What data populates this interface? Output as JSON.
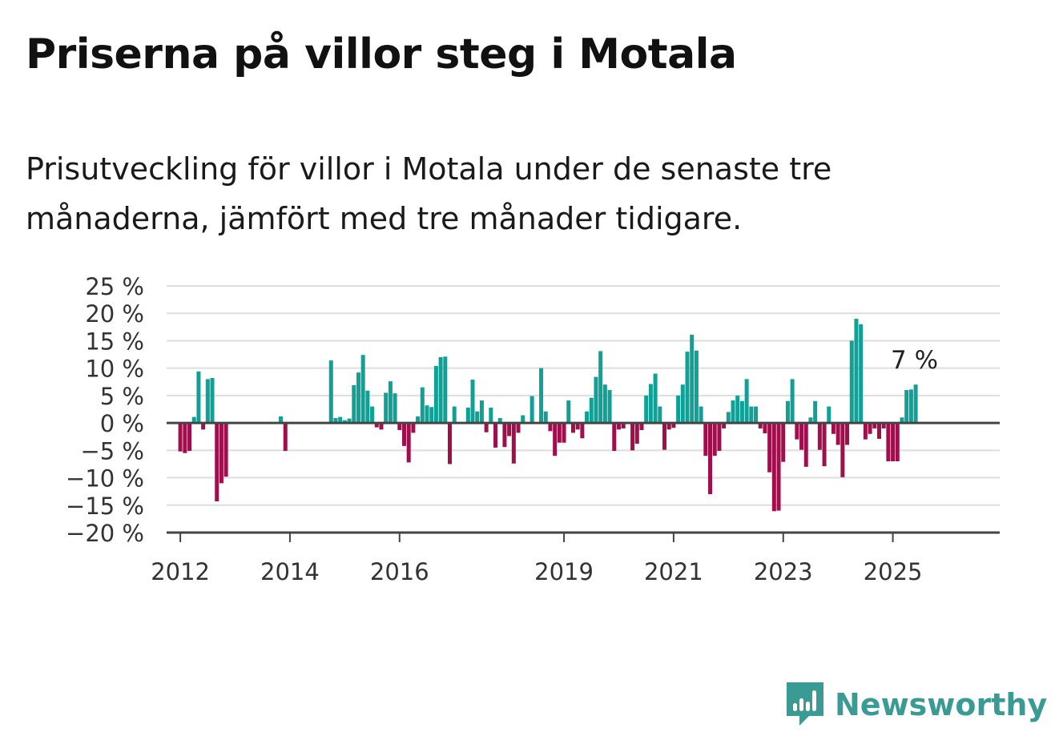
{
  "title": "Priserna på villor steg i Motala",
  "subtitle": "Prisutveckling för villor i Motala under de senaste tre månaderna, jämfört med tre månader tidigare.",
  "brand": {
    "name": "Newsworthy"
  },
  "colors": {
    "positive": "#11a095",
    "negative": "#a00f4c",
    "grid": "#dddddd",
    "axis": "#444444",
    "brand": "#3a9a94"
  },
  "chart_data": {
    "type": "bar",
    "x_ticks": [
      "2012",
      "2014",
      "2016",
      "2019",
      "2021",
      "2023",
      "2025"
    ],
    "y_ticks": [
      "25 %",
      "20 %",
      "15 %",
      "10 %",
      "5 %",
      "0 %",
      "−5 %",
      "−10 %",
      "−15 %",
      "−20 %"
    ],
    "ylim": [
      -20,
      25
    ],
    "grid": true,
    "annotation": "7 %",
    "series": [
      {
        "x": [
          "2012-01",
          "2012-02",
          "2012-03",
          "2012-04",
          "2012-05",
          "2012-06",
          "2012-07",
          "2012-08",
          "2012-09",
          "2012-10",
          "2012-11",
          "2013-11",
          "2013-12",
          "2014-10",
          "2014-11",
          "2014-12",
          "2015-01",
          "2015-02",
          "2015-03",
          "2015-04",
          "2015-05",
          "2015-06",
          "2015-07",
          "2015-08",
          "2015-09",
          "2015-10",
          "2015-11",
          "2015-12",
          "2016-01",
          "2016-02",
          "2016-03",
          "2016-04",
          "2016-05",
          "2016-06",
          "2016-07",
          "2016-08",
          "2016-09",
          "2016-10",
          "2016-11",
          "2016-12",
          "2017-01",
          "2017-04",
          "2017-05",
          "2017-06",
          "2017-07",
          "2017-08",
          "2017-09",
          "2017-10",
          "2017-11",
          "2017-12",
          "2018-01",
          "2018-02",
          "2018-03",
          "2018-04",
          "2018-06",
          "2018-08",
          "2018-09",
          "2018-10",
          "2018-11",
          "2018-12",
          "2019-01",
          "2019-02",
          "2019-03",
          "2019-04",
          "2019-05",
          "2019-06",
          "2019-07",
          "2019-08",
          "2019-09",
          "2019-10",
          "2019-11",
          "2019-12",
          "2020-01",
          "2020-02",
          "2020-04",
          "2020-05",
          "2020-06",
          "2020-07",
          "2020-08",
          "2020-09",
          "2020-10",
          "2020-11",
          "2020-12",
          "2021-01",
          "2021-02",
          "2021-03",
          "2021-04",
          "2021-05",
          "2021-06",
          "2021-07",
          "2021-08",
          "2021-09",
          "2021-10",
          "2021-11",
          "2021-12",
          "2022-01",
          "2022-02",
          "2022-03",
          "2022-04",
          "2022-05",
          "2022-06",
          "2022-07",
          "2022-08",
          "2022-09",
          "2022-10",
          "2022-11",
          "2022-12",
          "2023-01",
          "2023-02",
          "2023-03",
          "2023-04",
          "2023-05",
          "2023-06",
          "2023-07",
          "2023-08",
          "2023-09",
          "2023-10",
          "2023-11",
          "2023-12",
          "2024-01",
          "2024-02",
          "2024-03",
          "2024-04",
          "2024-05",
          "2024-06",
          "2024-07",
          "2024-08",
          "2024-09",
          "2024-10",
          "2024-11",
          "2024-12",
          "2025-01",
          "2025-02",
          "2025-03",
          "2025-04",
          "2025-05",
          "2025-06"
        ],
        "values": [
          -5.2,
          -5.5,
          -5.1,
          1.1,
          9.4,
          -1.2,
          8.0,
          8.2,
          -14.3,
          -11.0,
          -9.8,
          1.2,
          -5.1,
          11.4,
          0.9,
          1.1,
          0.5,
          0.8,
          6.9,
          9.2,
          12.4,
          5.9,
          3.0,
          -0.8,
          -1.2,
          5.5,
          7.6,
          5.4,
          -1.3,
          -4.2,
          -7.2,
          -1.8,
          1.2,
          6.5,
          3.2,
          2.9,
          10.4,
          12.0,
          12.1,
          -7.5,
          3.0,
          2.8,
          7.9,
          2.1,
          4.1,
          -1.7,
          2.8,
          -4.5,
          0.9,
          -4.4,
          -2.4,
          -7.4,
          -1.8,
          1.4,
          4.9,
          10.0,
          2.1,
          -1.5,
          -6.0,
          -3.6,
          -3.6,
          4.1,
          -1.8,
          -1.2,
          -2.8,
          2.1,
          4.6,
          8.4,
          13.1,
          7.0,
          6.0,
          -5.1,
          -1.2,
          -1.0,
          -5.0,
          -3.8,
          -1.3,
          5.0,
          7.1,
          9.0,
          3.0,
          -4.9,
          -1.2,
          -0.9,
          5.0,
          7.0,
          13.0,
          16.1,
          13.2,
          3.0,
          -6.0,
          -13.0,
          -6.0,
          -5.1,
          -1.0,
          2.0,
          4.1,
          5.0,
          4.0,
          8.0,
          3.0,
          3.0,
          -1.0,
          -1.9,
          -9.0,
          -16.1,
          -16.0,
          -7.1,
          4.0,
          8.0,
          -3.0,
          -4.9,
          -8.0,
          1.0,
          4.0,
          -4.9,
          -7.9,
          3.0,
          -2.0,
          -4.0,
          -9.9,
          -4.0,
          15.0,
          19.0,
          18.0,
          -3.0,
          -2.0,
          -1.0,
          -2.9,
          -1.0,
          -7.0,
          -7.0,
          -7.0,
          1.0,
          6.0,
          6.1,
          7.0
        ]
      }
    ]
  }
}
